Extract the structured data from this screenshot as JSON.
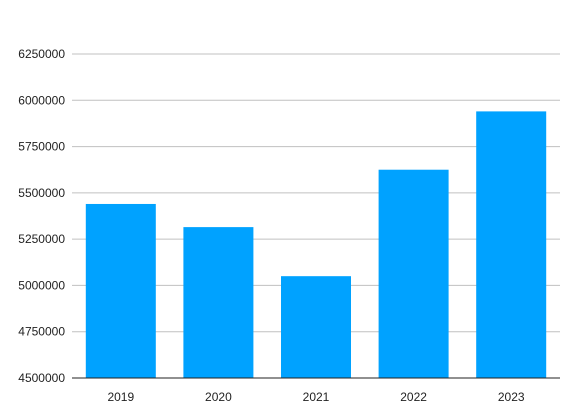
{
  "chart_data": {
    "type": "bar",
    "title": "",
    "xlabel": "",
    "ylabel": "",
    "categories": [
      "2019",
      "2020",
      "2021",
      "2022",
      "2023"
    ],
    "series": [
      {
        "values": [
          5440000,
          5315000,
          5050000,
          5625000,
          5940000
        ]
      }
    ],
    "ylim": [
      4500000,
      6250000
    ],
    "yticks": [
      "4500000",
      "4750000",
      "5000000",
      "5250000",
      "5500000",
      "5750000",
      "6000000",
      "6250000"
    ],
    "grid": true,
    "legend": "none",
    "colors": {
      "bar": "#00a2ff",
      "grid": "#c0c0c0",
      "axis": "#222222"
    }
  }
}
